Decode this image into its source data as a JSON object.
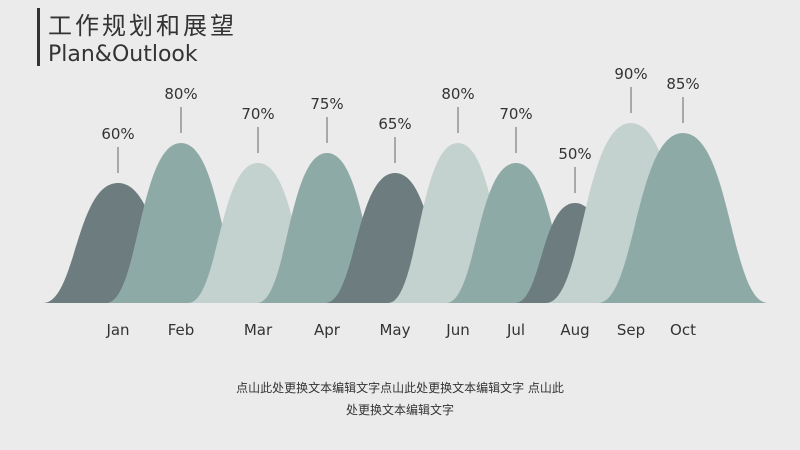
{
  "chart_data": {
    "type": "mountain",
    "title": "工作规划和展望",
    "subtitle": "Plan&Outlook",
    "categories": [
      "Jan",
      "Feb",
      "Mar",
      "Apr",
      "May",
      "Jun",
      "Jul",
      "Aug",
      "Sep",
      "Oct"
    ],
    "values": [
      60,
      80,
      70,
      75,
      65,
      80,
      70,
      50,
      90,
      85
    ],
    "value_labels": [
      "60%",
      "80%",
      "70%",
      "75%",
      "65%",
      "80%",
      "70%",
      "50%",
      "90%",
      "85%"
    ],
    "colors": [
      "#6d7c7e",
      "#8eaaa7",
      "#c3d2ce",
      "#8eaaa7",
      "#6d7c7e",
      "#c3d2ce",
      "#8eaaa7",
      "#6d7c7e",
      "#c3d2ce",
      "#8eaaa7"
    ],
    "ylim": [
      0,
      100
    ],
    "annotations": [
      "点山此处更换文本编辑文字点山此处更换文本编辑文字  点山此",
      "处更换文本编辑文字"
    ]
  }
}
